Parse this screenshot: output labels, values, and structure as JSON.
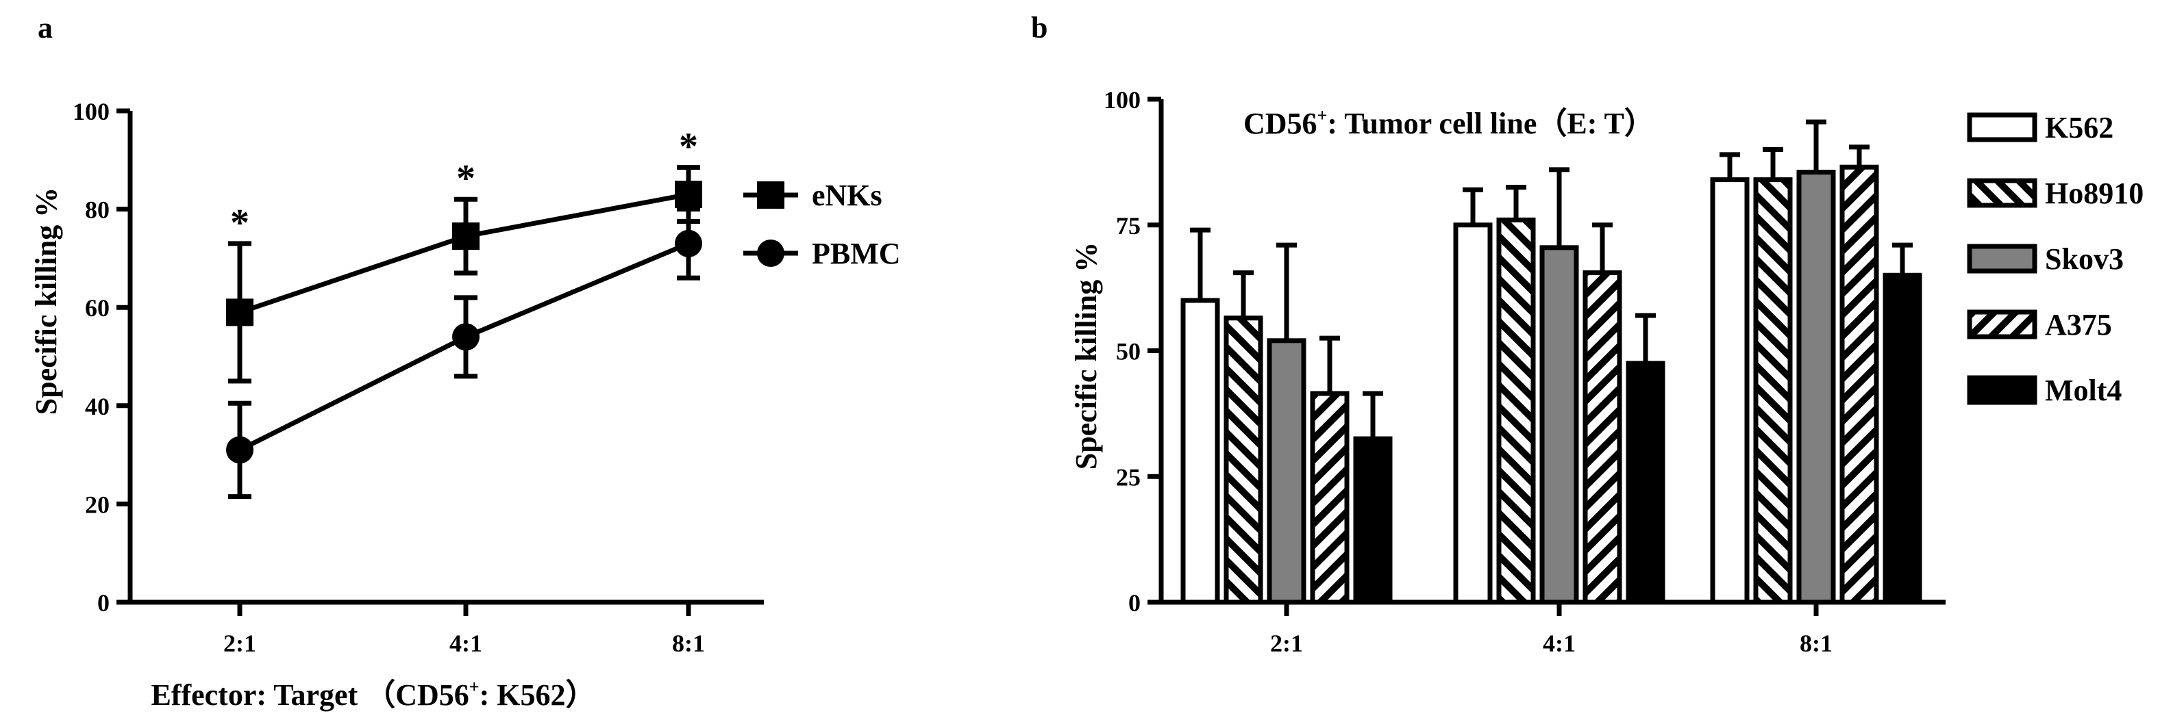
{
  "chart_data": [
    {
      "panel": "a",
      "type": "line",
      "title": "",
      "xlabel": "Effector: Target （CD56⁺: K562）",
      "xlabel_parts": [
        "Effector: Target （CD56",
        "+",
        ": K562）"
      ],
      "ylabel": "Specific killing %",
      "categories": [
        "2:1",
        "4:1",
        "8:1"
      ],
      "ylim": [
        0,
        100
      ],
      "yticks": [
        0,
        20,
        40,
        60,
        80,
        100
      ],
      "series": [
        {
          "name": "eNKs",
          "marker": "square",
          "values": [
            59,
            74.5,
            83
          ],
          "errors": [
            14,
            7.5,
            5.5
          ]
        },
        {
          "name": "PBMC",
          "marker": "circle",
          "values": [
            31,
            54,
            73
          ],
          "errors": [
            9.5,
            8,
            7
          ]
        }
      ],
      "annotations": [
        "*",
        "*",
        "*"
      ],
      "legend": "right"
    },
    {
      "panel": "b",
      "type": "bar",
      "title": "CD56⁺: Tumor cell line（E: T）",
      "title_parts": [
        "CD56",
        "+",
        ": Tumor cell line（E: T）"
      ],
      "xlabel": "",
      "ylabel": "Specific killing %",
      "categories": [
        "2:1",
        "4:1",
        "8:1"
      ],
      "ylim": [
        0,
        100
      ],
      "yticks": [
        0,
        25,
        50,
        75,
        100
      ],
      "series": [
        {
          "name": "K562",
          "fill": "white",
          "values": [
            60,
            75,
            84
          ],
          "errors": [
            14,
            7,
            5
          ]
        },
        {
          "name": "Ho8910",
          "fill": "hatch-right",
          "values": [
            56.5,
            76,
            84
          ],
          "errors": [
            9,
            6.5,
            6
          ]
        },
        {
          "name": "Skov3",
          "fill": "gray",
          "values": [
            52,
            70.5,
            85.5
          ],
          "errors": [
            19,
            15.5,
            10
          ]
        },
        {
          "name": "A375",
          "fill": "hatch-left",
          "values": [
            41.5,
            65.5,
            86.5
          ],
          "errors": [
            11,
            9.5,
            4
          ]
        },
        {
          "name": "Molt4",
          "fill": "black",
          "values": [
            32.5,
            47.5,
            65
          ],
          "errors": [
            9,
            9.5,
            6
          ]
        }
      ],
      "legend": "right"
    }
  ]
}
